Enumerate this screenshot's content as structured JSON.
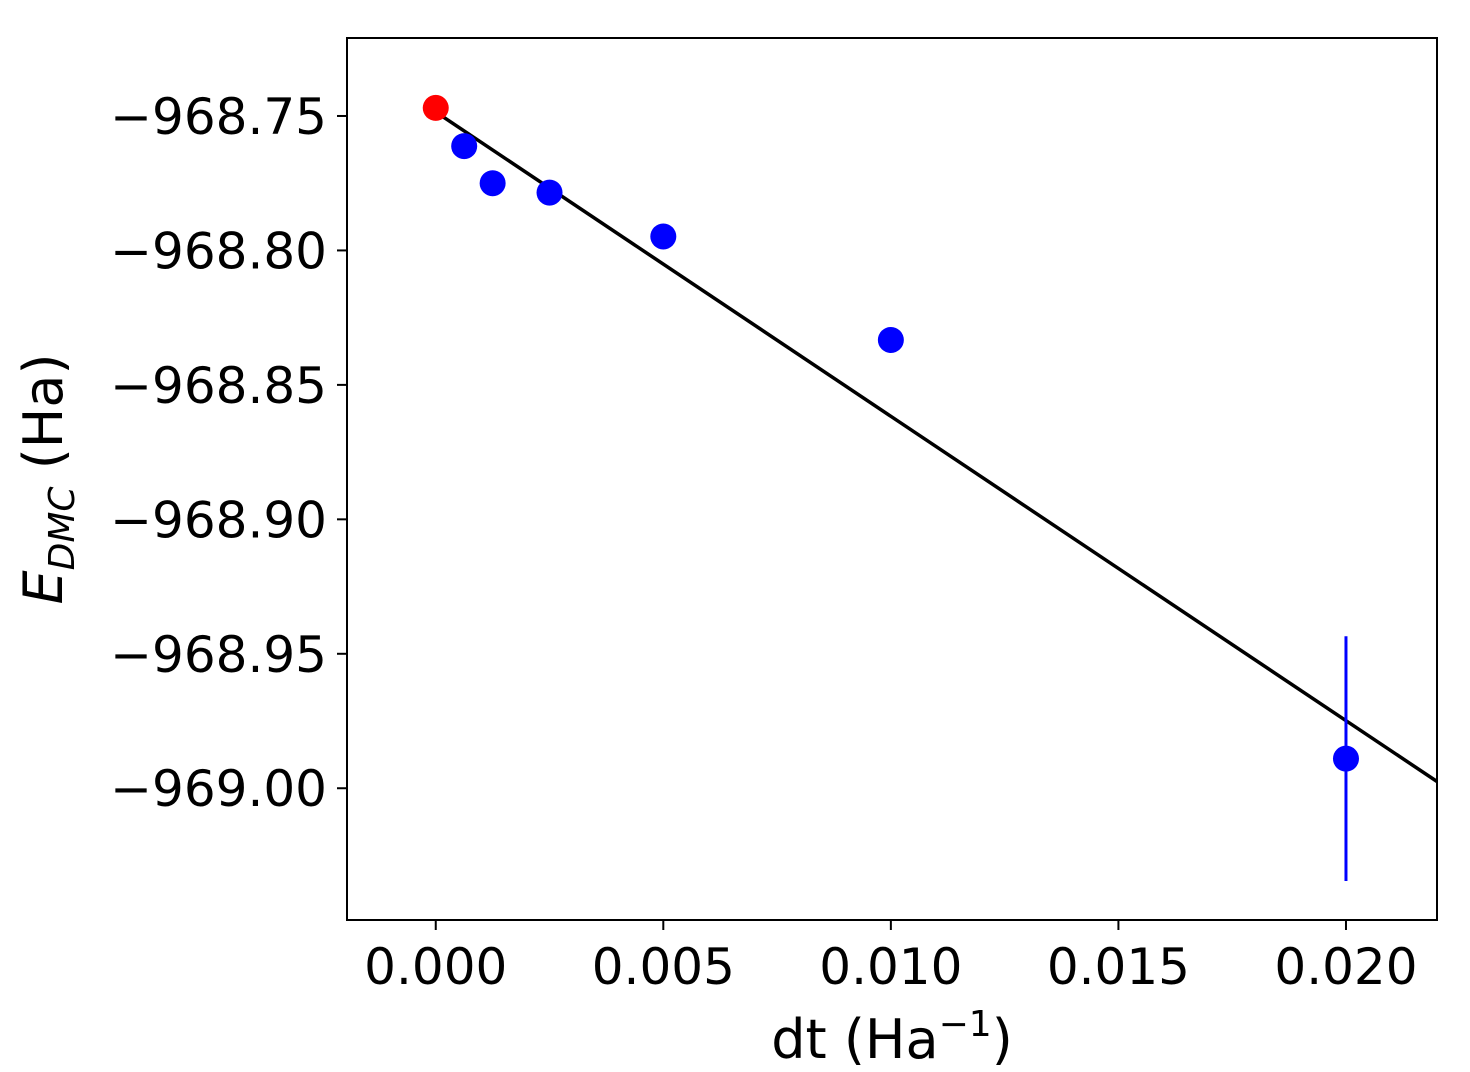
{
  "chart_data": {
    "type": "scatter",
    "xlabel": {
      "text": "dt (Ha",
      "sup": "−1",
      "suffix": ")"
    },
    "ylabel": {
      "main": "E",
      "sub": "DMC",
      "unit": " (Ha)"
    },
    "xlim": [
      -0.00195,
      0.022
    ],
    "ylim": [
      -969.049,
      -968.721
    ],
    "xticks": [
      {
        "value": 0.0,
        "label": "0.000"
      },
      {
        "value": 0.005,
        "label": "0.005"
      },
      {
        "value": 0.01,
        "label": "0.010"
      },
      {
        "value": 0.015,
        "label": "0.015"
      },
      {
        "value": 0.02,
        "label": "0.020"
      }
    ],
    "yticks": [
      {
        "value": -968.75,
        "label": "−968.75"
      },
      {
        "value": -968.8,
        "label": "−968.80"
      },
      {
        "value": -968.85,
        "label": "−968.85"
      },
      {
        "value": -968.9,
        "label": "−968.90"
      },
      {
        "value": -968.95,
        "label": "−968.95"
      },
      {
        "value": -969.0,
        "label": "−969.00"
      }
    ],
    "grid": false,
    "series": [
      {
        "color": "#0000ff",
        "points": [
          {
            "x": 0.000625,
            "y": -968.7612,
            "err": 0.003
          },
          {
            "x": 0.00125,
            "y": -968.775,
            "err": 0.002
          },
          {
            "x": 0.0025,
            "y": -968.7785,
            "err": 0.0015
          },
          {
            "x": 0.005,
            "y": -968.7948,
            "err": 0.0012
          },
          {
            "x": 0.01,
            "y": -968.8333,
            "err": 0.001
          },
          {
            "x": 0.02,
            "y": -968.989,
            "err": 0.0455
          }
        ]
      },
      {
        "color": "#ff0000",
        "points": [
          {
            "x": 0.0,
            "y": -968.747,
            "err": 0.004
          }
        ]
      }
    ],
    "fit_line": {
      "color": "#000000",
      "x": [
        0.0,
        0.022
      ],
      "y": [
        -968.7485,
        -968.9975
      ]
    }
  }
}
